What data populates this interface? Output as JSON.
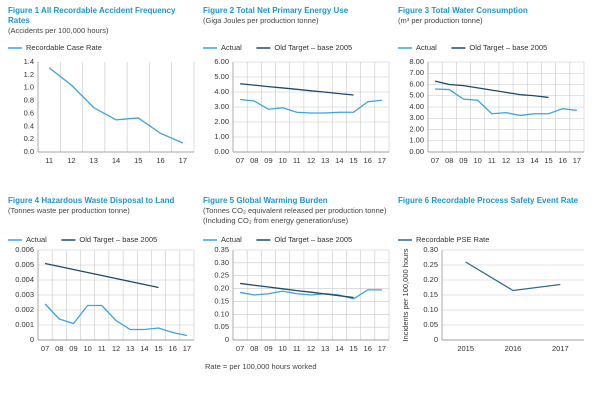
{
  "chart_data": [
    {
      "type": "line",
      "title": "Figure 1 All Recordable Accident Frequency Rates",
      "subtitle": "(Accidents per 100,000 hours)",
      "categories": [
        "11",
        "12",
        "13",
        "14",
        "15",
        "16",
        "17"
      ],
      "series": [
        {
          "name": "Recordable Case Rate",
          "color": "#3ea3db",
          "values": [
            1.31,
            1.04,
            0.69,
            0.5,
            0.53,
            0.29,
            0.14
          ]
        }
      ],
      "ylim": [
        0,
        1.4
      ],
      "yticks": [
        {
          "value": 0,
          "label": "0.0"
        },
        0.2,
        0.4,
        0.6,
        0.8,
        {
          "value": 1,
          "label": "1.0"
        },
        1.2,
        1.4
      ],
      "grid": "x"
    },
    {
      "type": "line",
      "title": "Figure 2 Total Net Primary Energy Use",
      "subtitle": "(Giga Joules per production tonne)",
      "categories": [
        "07",
        "08",
        "09",
        "10",
        "11",
        "12",
        "13",
        "14",
        "15",
        "16",
        "17"
      ],
      "series": [
        {
          "name": "Actual",
          "color": "#3ea3db",
          "values": [
            3.5,
            3.4,
            2.85,
            2.95,
            2.65,
            2.6,
            2.6,
            2.65,
            2.65,
            3.35,
            3.45
          ]
        },
        {
          "name": "Old Target – base 2005",
          "color": "#1d4a6b",
          "values": [
            4.55,
            4.46,
            4.36,
            4.27,
            4.18,
            4.08,
            3.99,
            3.89,
            3.8,
            null,
            null
          ]
        }
      ],
      "ylim": [
        0,
        6
      ],
      "yticks": [
        {
          "value": 0,
          "label": "0.00"
        },
        {
          "value": 1,
          "label": "1.00"
        },
        {
          "value": 2,
          "label": "2.00"
        },
        {
          "value": 3,
          "label": "3.00"
        },
        {
          "value": 4,
          "label": "4.00"
        },
        {
          "value": 5,
          "label": "5.00"
        },
        {
          "value": 6,
          "label": "6.00"
        }
      ],
      "grid": "both"
    },
    {
      "type": "line",
      "title": "Figure 3 Total Water Consumption",
      "subtitle": "(m³ per production tonne)",
      "categories": [
        "07",
        "08",
        "09",
        "10",
        "11",
        "12",
        "13",
        "14",
        "15",
        "16",
        "17"
      ],
      "series": [
        {
          "name": "Actual",
          "color": "#3ea3db",
          "values": [
            5.6,
            5.55,
            4.7,
            4.6,
            3.4,
            3.5,
            3.25,
            3.4,
            3.4,
            3.85,
            3.7
          ]
        },
        {
          "name": "Old Target – base 2005",
          "color": "#1d4a6b",
          "values": [
            6.3,
            6.0,
            5.9,
            5.7,
            5.5,
            5.3,
            5.1,
            5.0,
            4.85,
            null,
            null
          ]
        }
      ],
      "ylim": [
        0,
        8
      ],
      "yticks": [
        {
          "value": 0,
          "label": "0.00"
        },
        {
          "value": 1,
          "label": "1.00"
        },
        {
          "value": 2,
          "label": "2.00"
        },
        {
          "value": 3,
          "label": "3.00"
        },
        {
          "value": 4,
          "label": "4.00"
        },
        {
          "value": 5,
          "label": "5.00"
        },
        {
          "value": 6,
          "label": "6.00"
        },
        {
          "value": 7,
          "label": "7.00"
        },
        {
          "value": 8,
          "label": "8.00"
        }
      ],
      "grid": "both"
    },
    {
      "type": "line",
      "title": "Figure 4 Hazardous Waste Disposal to Land",
      "subtitle": "(Tonnes waste per production tonne)",
      "categories": [
        "07",
        "08",
        "09",
        "10",
        "11",
        "12",
        "13",
        "14",
        "15",
        "16",
        "17"
      ],
      "series": [
        {
          "name": "Actual",
          "color": "#3ea3db",
          "values": [
            0.0024,
            0.0014,
            0.0011,
            0.0023,
            0.0023,
            0.0013,
            0.0007,
            0.0007,
            0.0008,
            0.0005,
            0.0003
          ]
        },
        {
          "name": "Old Target – base 2005",
          "color": "#1d4a6b",
          "values": [
            0.0051,
            0.0049,
            0.0047,
            0.0045,
            0.0043,
            0.0041,
            0.0039,
            0.0037,
            0.0035,
            null,
            null
          ]
        }
      ],
      "ylim": [
        0,
        0.006
      ],
      "yticks": [
        0,
        0.001,
        0.002,
        0.003,
        0.004,
        0.005,
        0.006
      ],
      "grid": "both"
    },
    {
      "type": "line",
      "title": "Figure 5 Global Warming Burden",
      "subtitle": "(Tonnes CO₂ equivalent released per production tonne) (Including CO₂ from energy generation/use)",
      "categories": [
        "07",
        "08",
        "09",
        "10",
        "11",
        "12",
        "13",
        "14",
        "15",
        "16",
        "17"
      ],
      "series": [
        {
          "name": "Actual",
          "color": "#3ea3db",
          "values": [
            0.185,
            0.175,
            0.18,
            0.19,
            0.18,
            0.175,
            0.18,
            0.175,
            0.16,
            0.195,
            0.195
          ]
        },
        {
          "name": "Old Target – base 2005",
          "color": "#1d4a6b",
          "values": [
            0.22,
            0.213,
            0.206,
            0.199,
            0.192,
            0.186,
            0.179,
            0.172,
            0.165,
            null,
            null
          ]
        }
      ],
      "ylim": [
        0,
        0.35
      ],
      "yticks": [
        0,
        0.05,
        {
          "value": 0.1,
          "label": "0.10"
        },
        0.15,
        {
          "value": 0.2,
          "label": "0.20"
        },
        0.25,
        {
          "value": 0.3,
          "label": "0.30"
        },
        0.35
      ],
      "grid": "both"
    },
    {
      "type": "line",
      "title": "Figure 6 Recordable Process Safety Event Rate",
      "y_label": "Incidents per 100,000 hours",
      "categories": [
        "2015",
        "2016",
        "2017"
      ],
      "series": [
        {
          "name": "Recordable PSE Rate",
          "color": "#2e6a8e",
          "values": [
            0.26,
            0.165,
            0.185
          ]
        }
      ],
      "ylim": [
        0,
        0.3
      ],
      "yticks": [
        0,
        0.05,
        {
          "value": 0.1,
          "label": "0.10"
        },
        0.15,
        {
          "value": 0.2,
          "label": "0.20"
        },
        0.25,
        {
          "value": 0.3,
          "label": "0.30"
        }
      ],
      "grid": "y"
    }
  ],
  "footnote": "Rate = per 100,000 hours worked"
}
